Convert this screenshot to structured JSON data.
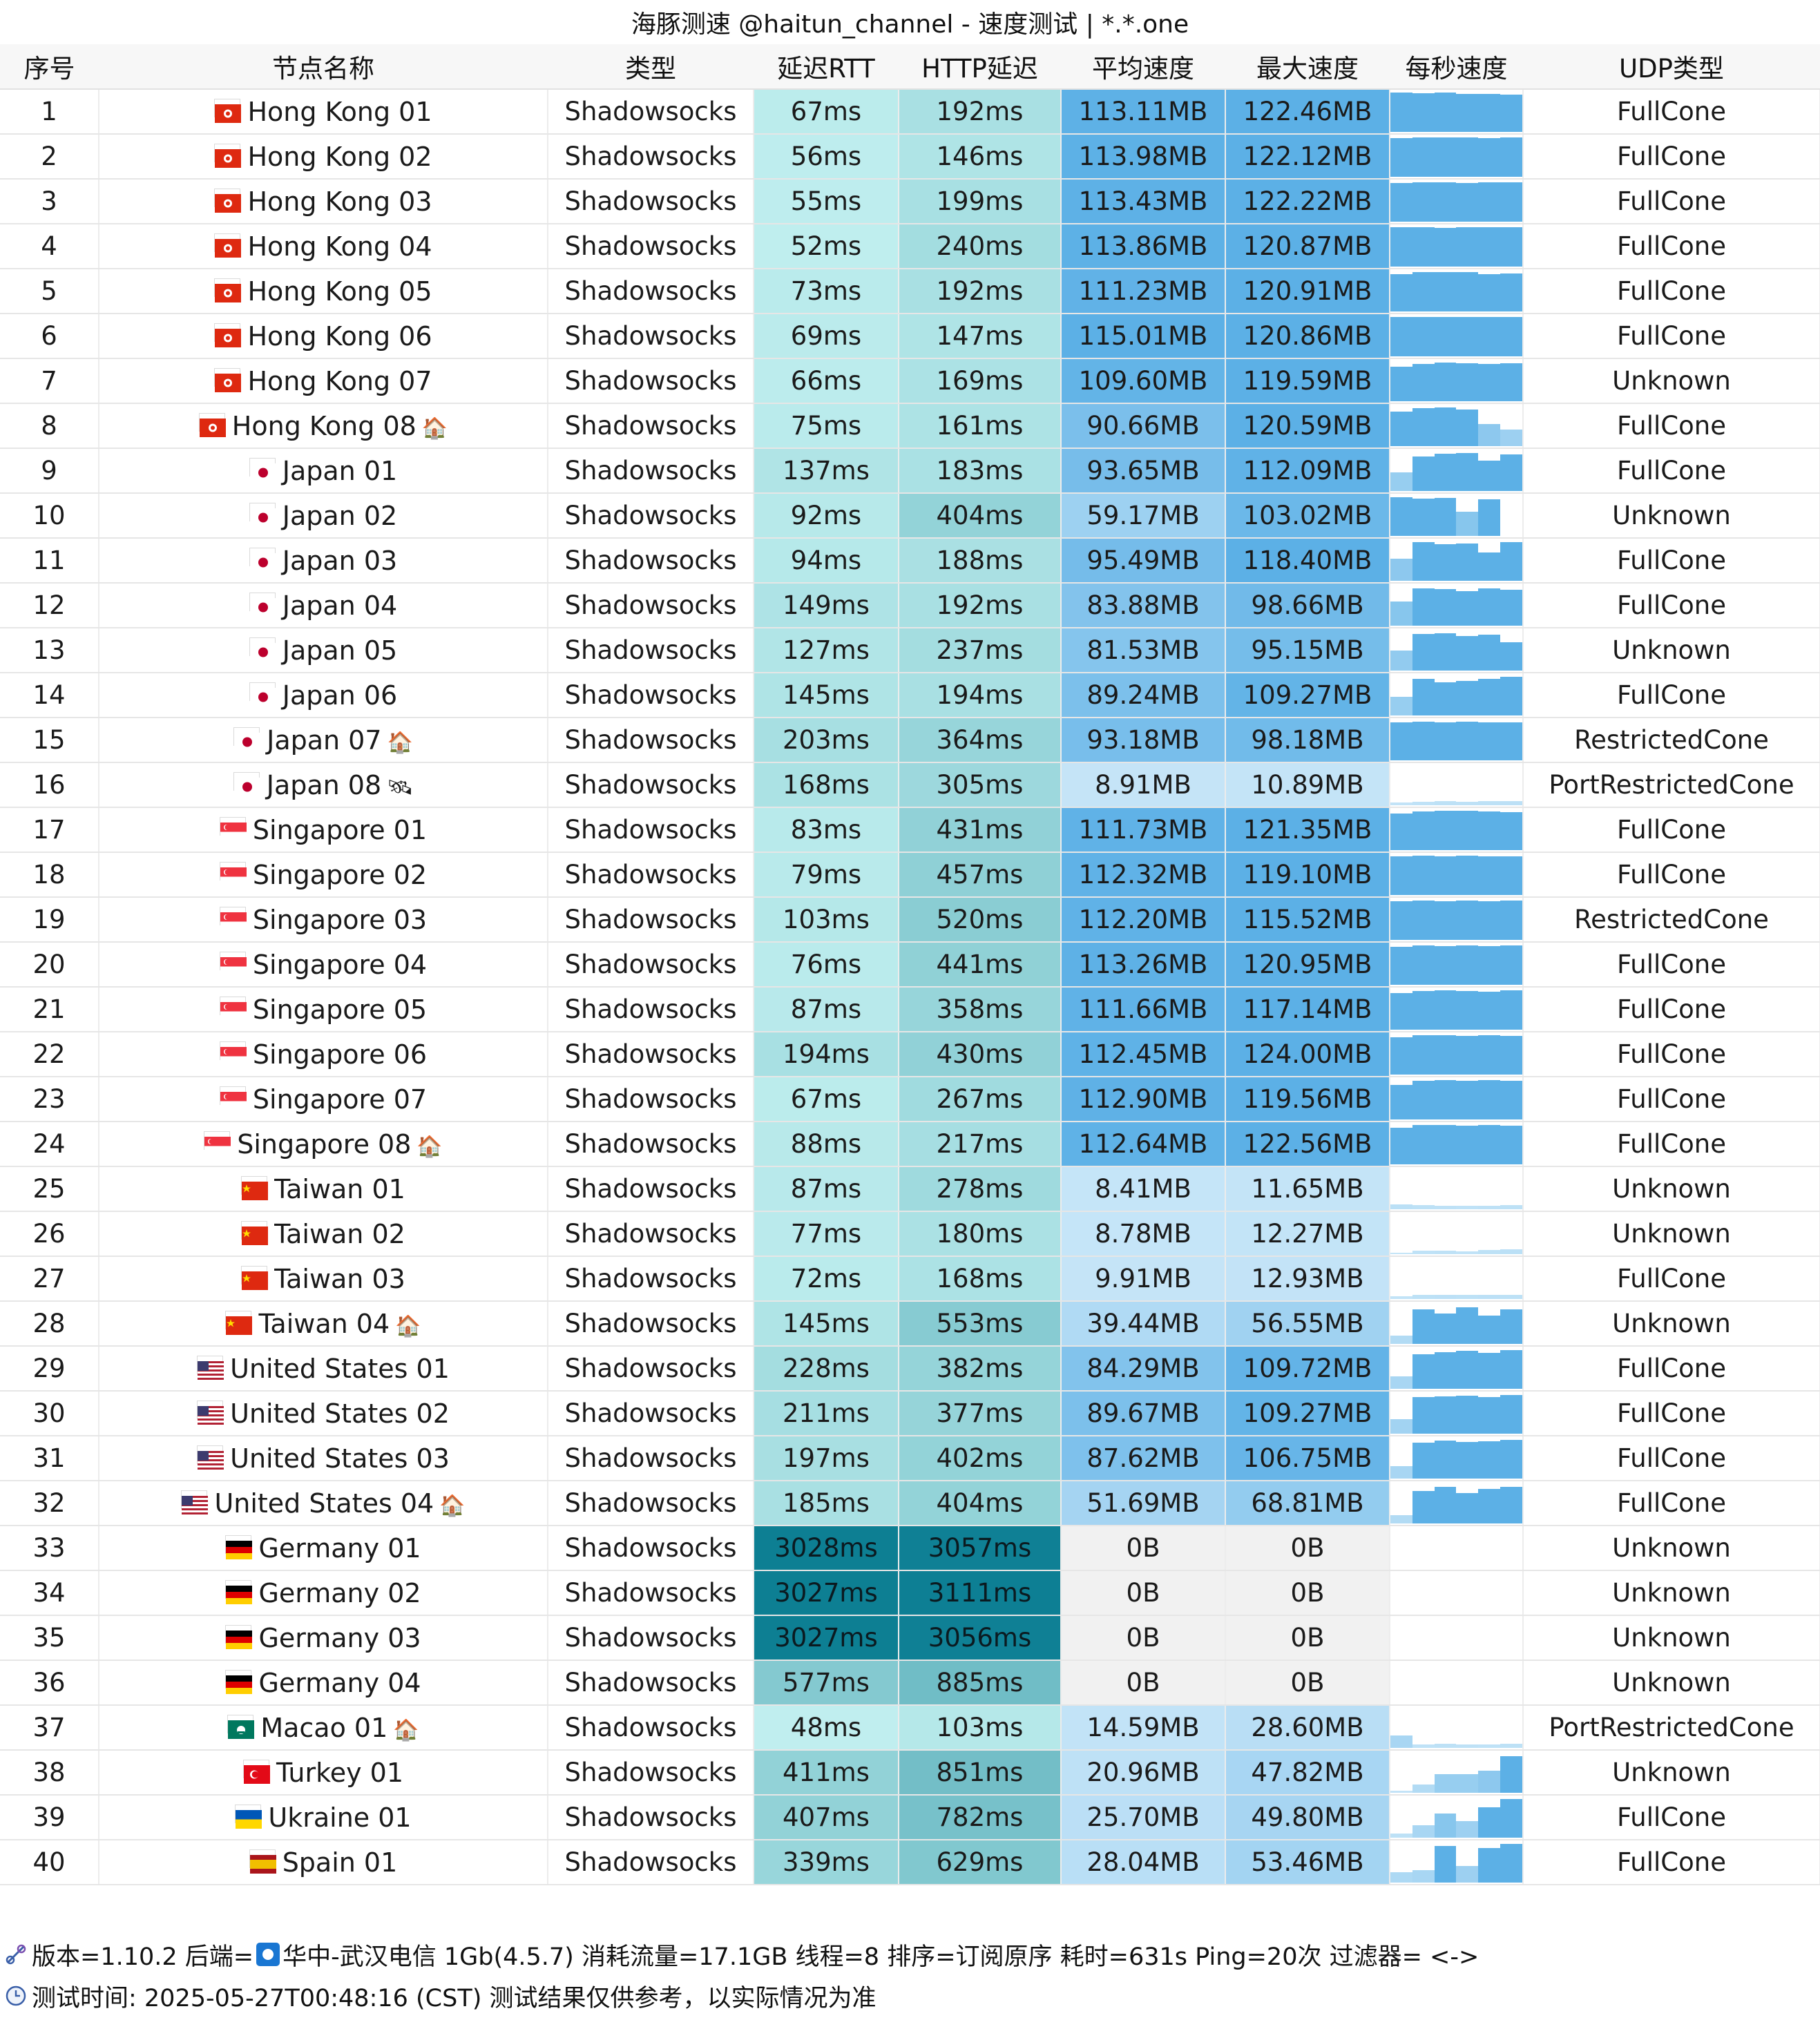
{
  "title": "海豚测速 @haitun_channel - 速度测试 | *.*.one",
  "columns": [
    "序号",
    "节点名称",
    "类型",
    "延迟RTT",
    "HTTP延迟",
    "平均速度",
    "最大速度",
    "每秒速度",
    "UDP类型"
  ],
  "rows": [
    {
      "idx": "1",
      "flag": "hk",
      "name": "Hong Kong 01",
      "badge": "",
      "type": "Shadowsocks",
      "rtt": "67ms",
      "http": "192ms",
      "avg": "113.11MB",
      "max": "122.46MB",
      "udp": "FullCone",
      "spark": [
        0.97,
        0.95,
        0.96,
        0.93,
        0.94,
        0.92
      ]
    },
    {
      "idx": "2",
      "flag": "hk",
      "name": "Hong Kong 02",
      "badge": "",
      "type": "Shadowsocks",
      "rtt": "56ms",
      "http": "146ms",
      "avg": "113.98MB",
      "max": "122.12MB",
      "udp": "FullCone",
      "spark": [
        0.95,
        0.97,
        0.96,
        0.97,
        0.95,
        0.96
      ]
    },
    {
      "idx": "3",
      "flag": "hk",
      "name": "Hong Kong 03",
      "badge": "",
      "type": "Shadowsocks",
      "rtt": "55ms",
      "http": "199ms",
      "avg": "113.43MB",
      "max": "122.22MB",
      "udp": "FullCone",
      "spark": [
        0.95,
        0.97,
        0.96,
        0.95,
        0.97,
        0.96
      ]
    },
    {
      "idx": "4",
      "flag": "hk",
      "name": "Hong Kong 04",
      "badge": "",
      "type": "Shadowsocks",
      "rtt": "52ms",
      "http": "240ms",
      "avg": "113.86MB",
      "max": "120.87MB",
      "udp": "FullCone",
      "spark": [
        0.96,
        0.97,
        0.95,
        0.96,
        0.97,
        0.96
      ]
    },
    {
      "idx": "5",
      "flag": "hk",
      "name": "Hong Kong 05",
      "badge": "",
      "type": "Shadowsocks",
      "rtt": "73ms",
      "http": "192ms",
      "avg": "111.23MB",
      "max": "120.91MB",
      "udp": "FullCone",
      "spark": [
        0.92,
        0.97,
        0.96,
        0.97,
        0.92,
        0.93
      ]
    },
    {
      "idx": "6",
      "flag": "hk",
      "name": "Hong Kong 06",
      "badge": "",
      "type": "Shadowsocks",
      "rtt": "69ms",
      "http": "147ms",
      "avg": "115.01MB",
      "max": "120.86MB",
      "udp": "FullCone",
      "spark": [
        0.96,
        0.97,
        0.96,
        0.97,
        0.97,
        0.96
      ]
    },
    {
      "idx": "7",
      "flag": "hk",
      "name": "Hong Kong 07",
      "badge": "",
      "type": "Shadowsocks",
      "rtt": "66ms",
      "http": "169ms",
      "avg": "109.60MB",
      "max": "119.59MB",
      "udp": "Unknown",
      "spark": [
        0.85,
        0.92,
        0.95,
        0.93,
        0.92,
        0.94
      ]
    },
    {
      "idx": "8",
      "flag": "hk",
      "name": "Hong Kong 08",
      "badge": "🏠",
      "type": "Shadowsocks",
      "rtt": "75ms",
      "http": "161ms",
      "avg": "90.66MB",
      "max": "120.59MB",
      "udp": "FullCone",
      "spark": [
        0.85,
        0.93,
        0.95,
        0.9,
        0.55,
        0.4
      ]
    },
    {
      "idx": "9",
      "flag": "jp",
      "name": "Japan 01",
      "badge": "",
      "type": "Shadowsocks",
      "rtt": "137ms",
      "http": "183ms",
      "avg": "93.65MB",
      "max": "112.09MB",
      "udp": "FullCone",
      "spark": [
        0.45,
        0.85,
        0.92,
        0.93,
        0.75,
        0.9
      ]
    },
    {
      "idx": "10",
      "flag": "jp",
      "name": "Japan 02",
      "badge": "",
      "type": "Shadowsocks",
      "rtt": "92ms",
      "http": "404ms",
      "avg": "59.17MB",
      "max": "103.02MB",
      "udp": "Unknown",
      "spark": [
        0.95,
        0.92,
        0.93,
        0.6,
        0.9,
        0.0
      ]
    },
    {
      "idx": "11",
      "flag": "jp",
      "name": "Japan 03",
      "badge": "",
      "type": "Shadowsocks",
      "rtt": "94ms",
      "http": "188ms",
      "avg": "95.49MB",
      "max": "118.40MB",
      "udp": "FullCone",
      "spark": [
        0.55,
        0.95,
        0.9,
        0.92,
        0.7,
        0.95
      ]
    },
    {
      "idx": "12",
      "flag": "jp",
      "name": "Japan 04",
      "badge": "",
      "type": "Shadowsocks",
      "rtt": "149ms",
      "http": "192ms",
      "avg": "83.88MB",
      "max": "98.66MB",
      "udp": "FullCone",
      "spark": [
        0.6,
        0.92,
        0.9,
        0.85,
        0.92,
        0.88
      ]
    },
    {
      "idx": "13",
      "flag": "jp",
      "name": "Japan 05",
      "badge": "",
      "type": "Shadowsocks",
      "rtt": "127ms",
      "http": "237ms",
      "avg": "81.53MB",
      "max": "95.15MB",
      "udp": "Unknown",
      "spark": [
        0.5,
        0.9,
        0.92,
        0.85,
        0.88,
        0.7
      ]
    },
    {
      "idx": "14",
      "flag": "jp",
      "name": "Japan 06",
      "badge": "",
      "type": "Shadowsocks",
      "rtt": "145ms",
      "http": "194ms",
      "avg": "89.24MB",
      "max": "109.27MB",
      "udp": "FullCone",
      "spark": [
        0.45,
        0.9,
        0.82,
        0.85,
        0.9,
        0.95
      ]
    },
    {
      "idx": "15",
      "flag": "jp",
      "name": "Japan 07",
      "badge": "🏠",
      "type": "Shadowsocks",
      "rtt": "203ms",
      "http": "364ms",
      "avg": "93.18MB",
      "max": "98.18MB",
      "udp": "RestrictedCone",
      "spark": [
        0.93,
        0.95,
        0.94,
        0.95,
        0.93,
        0.94
      ]
    },
    {
      "idx": "16",
      "flag": "jp",
      "name": "Japan 08",
      "badge": "🛰",
      "type": "Shadowsocks",
      "rtt": "168ms",
      "http": "305ms",
      "avg": "8.91MB",
      "max": "10.89MB",
      "udp": "PortRestrictedCone",
      "spark": [
        0.06,
        0.08,
        0.1,
        0.09,
        0.1,
        0.11
      ]
    },
    {
      "idx": "17",
      "flag": "sg",
      "name": "Singapore 01",
      "badge": "",
      "type": "Shadowsocks",
      "rtt": "83ms",
      "http": "431ms",
      "avg": "111.73MB",
      "max": "121.35MB",
      "udp": "FullCone",
      "spark": [
        0.9,
        0.95,
        0.96,
        0.97,
        0.95,
        0.94
      ]
    },
    {
      "idx": "18",
      "flag": "sg",
      "name": "Singapore 02",
      "badge": "",
      "type": "Shadowsocks",
      "rtt": "79ms",
      "http": "457ms",
      "avg": "112.32MB",
      "max": "119.10MB",
      "udp": "FullCone",
      "spark": [
        0.95,
        0.96,
        0.95,
        0.96,
        0.95,
        0.95
      ]
    },
    {
      "idx": "19",
      "flag": "sg",
      "name": "Singapore 03",
      "badge": "",
      "type": "Shadowsocks",
      "rtt": "103ms",
      "http": "520ms",
      "avg": "112.20MB",
      "max": "115.52MB",
      "udp": "RestrictedCone",
      "spark": [
        0.95,
        0.96,
        0.95,
        0.96,
        0.95,
        0.96
      ]
    },
    {
      "idx": "20",
      "flag": "sg",
      "name": "Singapore 04",
      "badge": "",
      "type": "Shadowsocks",
      "rtt": "76ms",
      "http": "441ms",
      "avg": "113.26MB",
      "max": "120.95MB",
      "udp": "FullCone",
      "spark": [
        0.93,
        0.97,
        0.95,
        0.96,
        0.95,
        0.96
      ]
    },
    {
      "idx": "21",
      "flag": "sg",
      "name": "Singapore 05",
      "badge": "",
      "type": "Shadowsocks",
      "rtt": "87ms",
      "http": "358ms",
      "avg": "111.66MB",
      "max": "117.14MB",
      "udp": "FullCone",
      "spark": [
        0.9,
        0.95,
        0.96,
        0.95,
        0.94,
        0.96
      ]
    },
    {
      "idx": "22",
      "flag": "sg",
      "name": "Singapore 06",
      "badge": "",
      "type": "Shadowsocks",
      "rtt": "194ms",
      "http": "430ms",
      "avg": "112.45MB",
      "max": "124.00MB",
      "udp": "FullCone",
      "spark": [
        0.92,
        0.97,
        0.96,
        0.95,
        0.96,
        0.95
      ]
    },
    {
      "idx": "23",
      "flag": "sg",
      "name": "Singapore 07",
      "badge": "",
      "type": "Shadowsocks",
      "rtt": "67ms",
      "http": "267ms",
      "avg": "112.90MB",
      "max": "119.56MB",
      "udp": "FullCone",
      "spark": [
        0.85,
        0.95,
        0.96,
        0.95,
        0.96,
        0.95
      ]
    },
    {
      "idx": "24",
      "flag": "sg",
      "name": "Singapore 08",
      "badge": "🏠",
      "type": "Shadowsocks",
      "rtt": "88ms",
      "http": "217ms",
      "avg": "112.64MB",
      "max": "122.56MB",
      "udp": "FullCone",
      "spark": [
        0.9,
        0.96,
        0.97,
        0.95,
        0.96,
        0.95
      ]
    },
    {
      "idx": "25",
      "flag": "tw",
      "name": "Taiwan 01",
      "badge": "",
      "type": "Shadowsocks",
      "rtt": "87ms",
      "http": "278ms",
      "avg": "8.41MB",
      "max": "11.65MB",
      "udp": "Unknown",
      "spark": [
        0.12,
        0.1,
        0.09,
        0.08,
        0.09,
        0.1
      ]
    },
    {
      "idx": "26",
      "flag": "tw",
      "name": "Taiwan 02",
      "badge": "",
      "type": "Shadowsocks",
      "rtt": "77ms",
      "http": "180ms",
      "avg": "8.78MB",
      "max": "12.27MB",
      "udp": "Unknown",
      "spark": [
        0.04,
        0.08,
        0.09,
        0.07,
        0.1,
        0.12
      ]
    },
    {
      "idx": "27",
      "flag": "tw",
      "name": "Taiwan 03",
      "badge": "",
      "type": "Shadowsocks",
      "rtt": "72ms",
      "http": "168ms",
      "avg": "9.91MB",
      "max": "12.93MB",
      "udp": "FullCone",
      "spark": [
        0.06,
        0.1,
        0.11,
        0.1,
        0.11,
        0.1
      ]
    },
    {
      "idx": "28",
      "flag": "tw",
      "name": "Taiwan 04",
      "badge": "🏠",
      "type": "Shadowsocks",
      "rtt": "145ms",
      "http": "553ms",
      "avg": "39.44MB",
      "max": "56.55MB",
      "udp": "Unknown",
      "spark": [
        0.2,
        0.85,
        0.75,
        0.9,
        0.7,
        0.85
      ]
    },
    {
      "idx": "29",
      "flag": "us",
      "name": "United States 01",
      "badge": "",
      "type": "Shadowsocks",
      "rtt": "228ms",
      "http": "382ms",
      "avg": "84.29MB",
      "max": "109.72MB",
      "udp": "FullCone",
      "spark": [
        0.3,
        0.85,
        0.9,
        0.93,
        0.88,
        0.95
      ]
    },
    {
      "idx": "30",
      "flag": "us",
      "name": "United States 02",
      "badge": "",
      "type": "Shadowsocks",
      "rtt": "211ms",
      "http": "377ms",
      "avg": "89.67MB",
      "max": "109.27MB",
      "udp": "FullCone",
      "spark": [
        0.35,
        0.9,
        0.92,
        0.93,
        0.9,
        0.95
      ]
    },
    {
      "idx": "31",
      "flag": "us",
      "name": "United States 03",
      "badge": "",
      "type": "Shadowsocks",
      "rtt": "197ms",
      "http": "402ms",
      "avg": "87.62MB",
      "max": "106.75MB",
      "udp": "FullCone",
      "spark": [
        0.3,
        0.88,
        0.93,
        0.9,
        0.92,
        0.95
      ]
    },
    {
      "idx": "32",
      "flag": "us",
      "name": "United States 04",
      "badge": "🏠",
      "type": "Shadowsocks",
      "rtt": "185ms",
      "http": "404ms",
      "avg": "51.69MB",
      "max": "68.81MB",
      "udp": "FullCone",
      "spark": [
        0.2,
        0.8,
        0.9,
        0.75,
        0.85,
        0.9
      ]
    },
    {
      "idx": "33",
      "flag": "de",
      "name": "Germany 01",
      "badge": "",
      "type": "Shadowsocks",
      "rtt": "3028ms",
      "http": "3057ms",
      "avg": "0B",
      "max": "0B",
      "udp": "Unknown",
      "spark": [
        0,
        0,
        0,
        0,
        0,
        0
      ]
    },
    {
      "idx": "34",
      "flag": "de",
      "name": "Germany 02",
      "badge": "",
      "type": "Shadowsocks",
      "rtt": "3027ms",
      "http": "3111ms",
      "avg": "0B",
      "max": "0B",
      "udp": "Unknown",
      "spark": [
        0,
        0,
        0,
        0,
        0,
        0
      ]
    },
    {
      "idx": "35",
      "flag": "de",
      "name": "Germany 03",
      "badge": "",
      "type": "Shadowsocks",
      "rtt": "3027ms",
      "http": "3056ms",
      "avg": "0B",
      "max": "0B",
      "udp": "Unknown",
      "spark": [
        0,
        0,
        0,
        0,
        0,
        0
      ]
    },
    {
      "idx": "36",
      "flag": "de",
      "name": "Germany 04",
      "badge": "",
      "type": "Shadowsocks",
      "rtt": "577ms",
      "http": "885ms",
      "avg": "0B",
      "max": "0B",
      "udp": "Unknown",
      "spark": [
        0,
        0,
        0,
        0,
        0,
        0
      ]
    },
    {
      "idx": "37",
      "flag": "mo",
      "name": "Macao 01",
      "badge": "🏠",
      "type": "Shadowsocks",
      "rtt": "48ms",
      "http": "103ms",
      "avg": "14.59MB",
      "max": "28.60MB",
      "udp": "PortRestrictedCone",
      "spark": [
        0.3,
        0.08,
        0.1,
        0.09,
        0.08,
        0.1
      ]
    },
    {
      "idx": "38",
      "flag": "tr",
      "name": "Turkey 01",
      "badge": "",
      "type": "Shadowsocks",
      "rtt": "411ms",
      "http": "851ms",
      "avg": "20.96MB",
      "max": "47.82MB",
      "udp": "Unknown",
      "spark": [
        0.05,
        0.2,
        0.45,
        0.45,
        0.55,
        0.9
      ]
    },
    {
      "idx": "39",
      "flag": "ua",
      "name": "Ukraine 01",
      "badge": "",
      "type": "Shadowsocks",
      "rtt": "407ms",
      "http": "782ms",
      "avg": "25.70MB",
      "max": "49.80MB",
      "udp": "FullCone",
      "spark": [
        0.1,
        0.3,
        0.6,
        0.4,
        0.75,
        0.95
      ]
    },
    {
      "idx": "40",
      "flag": "es",
      "name": "Spain 01",
      "badge": "",
      "type": "Shadowsocks",
      "rtt": "339ms",
      "http": "629ms",
      "avg": "28.04MB",
      "max": "53.46MB",
      "udp": "FullCone",
      "spark": [
        0.25,
        0.3,
        0.9,
        0.4,
        0.85,
        0.95
      ]
    }
  ],
  "footer": {
    "line1_a": "版本=1.10.2  后端=",
    "line1_b": "华中-武汉电信 1Gb(4.5.7) 消耗流量=17.1GB  线程=8  排序=订阅原序  耗时=631s  Ping=20次  过滤器= <->",
    "line2": "测试时间: 2025-05-27T00:48:16 (CST)  测试结果仅供参考，以实际情况为准"
  },
  "colors": {
    "header_bg": "#f7f7f7",
    "latency_fast": "#d4fbf9",
    "latency_slow": "#0a7d92",
    "speed_fast": "#5cb0e6",
    "speed_slow": "#c8e6f8",
    "zero_bg": "#f1f1f1"
  }
}
